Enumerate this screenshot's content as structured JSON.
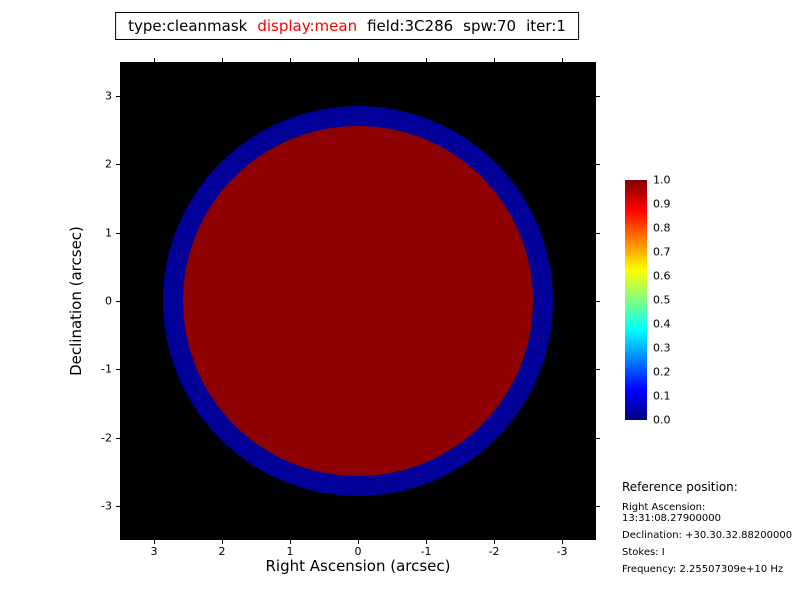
{
  "title": {
    "parts": [
      {
        "text": "type:cleanmask",
        "color": "#000000"
      },
      {
        "text": "display:mean",
        "color": "#ff0000"
      },
      {
        "text": "field:3C286",
        "color": "#000000"
      },
      {
        "text": "spw:70",
        "color": "#000000"
      },
      {
        "text": "iter:1",
        "color": "#000000"
      }
    ]
  },
  "axes": {
    "xlabel": "Right Ascension (arcsec)",
    "ylabel": "Declination (arcsec)",
    "xticks": [
      "3",
      "2",
      "1",
      "0",
      "-1",
      "-2",
      "-3"
    ],
    "yticks": [
      "3",
      "2",
      "1",
      "0",
      "-1",
      "-2",
      "-3"
    ]
  },
  "colorbar": {
    "ticks": [
      "1.0",
      "0.9",
      "0.8",
      "0.7",
      "0.6",
      "0.5",
      "0.4",
      "0.3",
      "0.2",
      "0.1",
      "0.0"
    ]
  },
  "reference": {
    "heading": "Reference position:",
    "lines": [
      "Right Ascension: 13:31:08.27900000",
      "Declination: +30.30.32.88200000",
      "Stokes: I",
      "Frequency: 2.25507309e+10 Hz"
    ]
  },
  "colors": {
    "plot_background": "#000000",
    "mask_core_red": "#8e0000",
    "mask_annulus_blue": "#000099",
    "title_highlight_red": "#ff0000"
  },
  "chart_data": {
    "type": "heatmap",
    "title": "type:cleanmask display:mean field:3C286 spw:70 iter:1",
    "xlabel": "Right Ascension (arcsec)",
    "ylabel": "Declination (arcsec)",
    "xlim": [
      3.5,
      -3.5
    ],
    "ylim": [
      -3.5,
      3.5
    ],
    "xticks": [
      3,
      2,
      1,
      0,
      -1,
      -2,
      -3
    ],
    "yticks": [
      3,
      2,
      1,
      0,
      -1,
      -2,
      -3
    ],
    "background_color": "#000000",
    "regions": [
      {
        "name": "mask-annulus",
        "shape": "circle",
        "center_arcsec": [
          0,
          0
        ],
        "radius_arcsec": 2.87,
        "value": 0.05,
        "color": "#000099"
      },
      {
        "name": "mask-core",
        "shape": "circle",
        "center_arcsec": [
          0,
          0
        ],
        "radius_arcsec": 2.57,
        "value": 1.0,
        "color": "#8e0000"
      }
    ],
    "colorbar": {
      "range": [
        0.0,
        1.0
      ],
      "ticks": [
        1.0,
        0.9,
        0.8,
        0.7,
        0.6,
        0.5,
        0.4,
        0.3,
        0.2,
        0.1,
        0.0
      ],
      "colormap": "jet",
      "position": "right",
      "gradient": [
        {
          "pos": 0.0,
          "color": "#000080"
        },
        {
          "pos": 0.125,
          "color": "#0000ff"
        },
        {
          "pos": 0.375,
          "color": "#00ffff"
        },
        {
          "pos": 0.625,
          "color": "#ffff00"
        },
        {
          "pos": 0.875,
          "color": "#ff0000"
        },
        {
          "pos": 1.0,
          "color": "#800000"
        }
      ]
    }
  }
}
